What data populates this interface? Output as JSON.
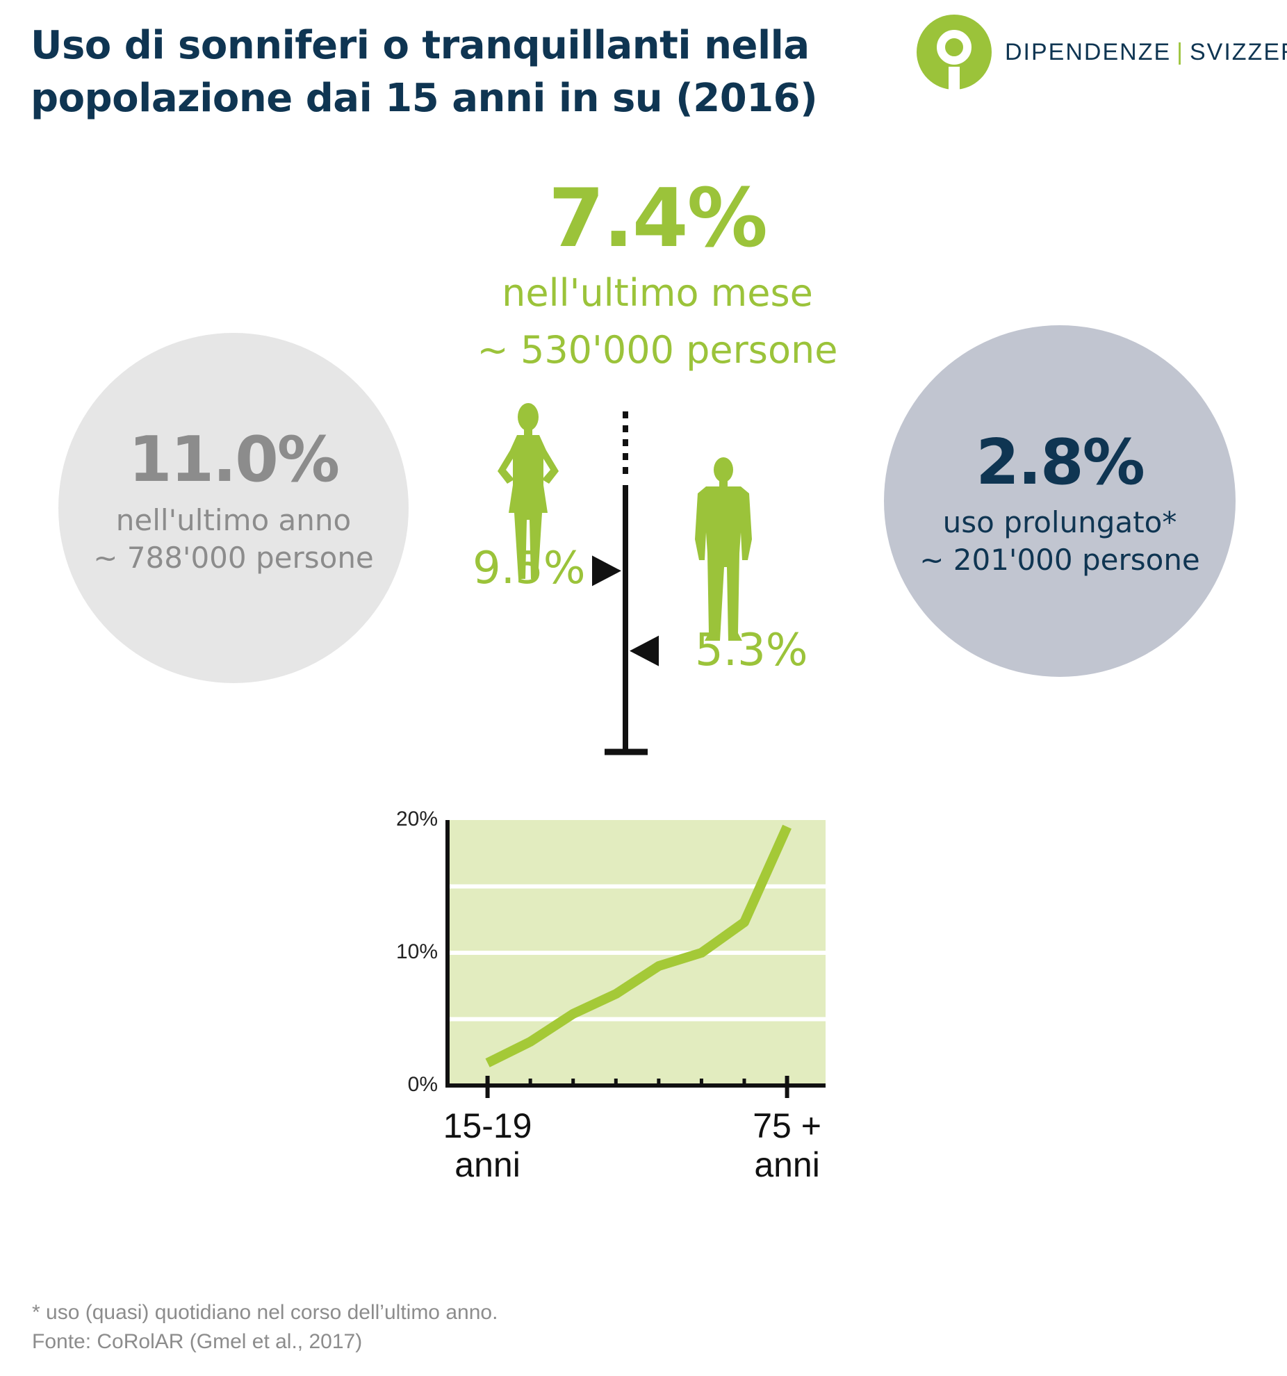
{
  "title_lines": [
    "Uso di sonniferi o tranquillanti nella",
    "popolazione dai 15 anni in su (2016)"
  ],
  "logo": {
    "left": "DIPENDENZE",
    "separator": "|",
    "right": "SVIZZERA",
    "icon": "person-in-circle-icon"
  },
  "center": {
    "pct": "7.4%",
    "line1": "nell'ultimo mese",
    "line2": "~ 530'000 persone"
  },
  "left_circle": {
    "pct": "11.0%",
    "line1": "nell'ultimo anno",
    "line2": "~ 788'000 persone"
  },
  "right_circle": {
    "pct": "2.8%",
    "line1": "uso prolungato*",
    "line2": "~ 201'000 persone"
  },
  "gender": {
    "women": {
      "label": "9.5%",
      "value": 9.5,
      "icon": "woman-silhouette-icon"
    },
    "men": {
      "label": "5.3%",
      "value": 5.3,
      "icon": "man-silhouette-icon"
    },
    "scale_max": 14
  },
  "footnotes": {
    "note": "* uso (quasi) quotidiano nel corso dell’ultimo anno.",
    "source": "Fonte: CoRolAR (Gmel et al., 2017)"
  },
  "colors": {
    "green": "#9bc33a",
    "navy": "#0f3552",
    "light_green_bg": "#e2ecbf",
    "grey_circle": "#e6e6e6",
    "blue_grey_circle": "#c1c5d0"
  },
  "chart_data": {
    "type": "line",
    "x": [
      0,
      1,
      2,
      3,
      4,
      5,
      6,
      7
    ],
    "x_tick_labels": [
      {
        "x": 0,
        "lines": [
          "15-19",
          "anni"
        ]
      },
      {
        "x": 7,
        "lines": [
          "75 +",
          "anni"
        ]
      }
    ],
    "values": [
      1.7,
      3.3,
      5.4,
      6.9,
      9.0,
      10.0,
      12.3,
      19.5
    ],
    "xlim": [
      -1,
      7.9
    ],
    "ylim": [
      0,
      20
    ],
    "y_ticks": [
      {
        "value": 0,
        "label": "0%"
      },
      {
        "value": 10,
        "label": "10%"
      },
      {
        "value": 20,
        "label": "20%"
      }
    ],
    "gridlines": [
      5,
      10,
      15
    ],
    "grid": true
  }
}
